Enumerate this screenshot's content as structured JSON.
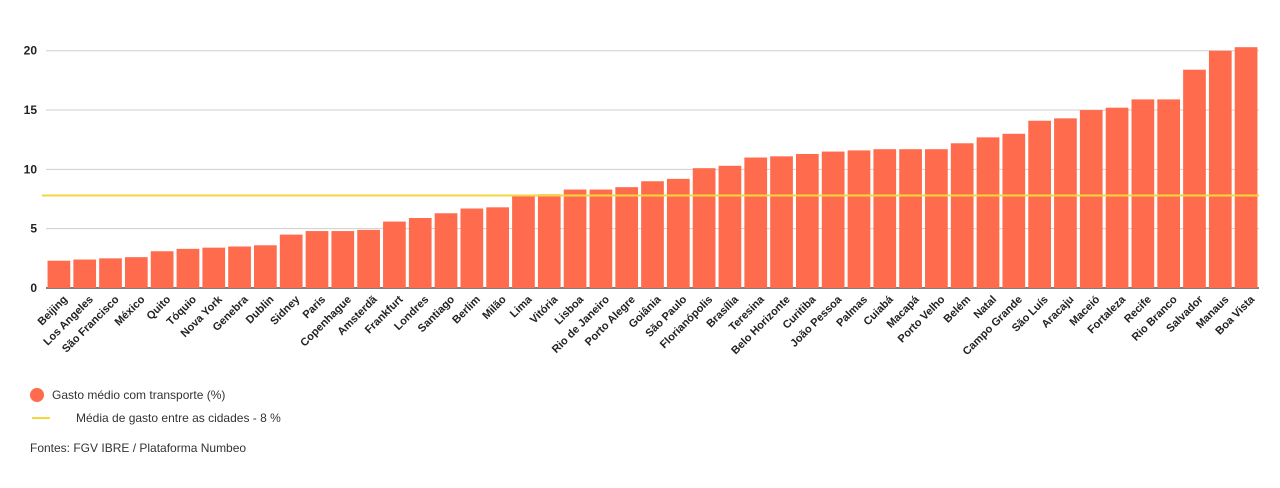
{
  "chart_data": {
    "type": "bar",
    "categories": [
      "Beijing",
      "Los Angeles",
      "São Francisco",
      "México",
      "Quito",
      "Tóquio",
      "Nova York",
      "Genebra",
      "Dublin",
      "Sidney",
      "Paris",
      "Copenhague",
      "Amsterdã",
      "Frankfurt",
      "Londres",
      "Santiago",
      "Berlim",
      "Milão",
      "Lima",
      "Vitória",
      "Lisboa",
      "Rio de Janeiro",
      "Porto Alegre",
      "Goiânia",
      "São Paulo",
      "Florianópolis",
      "Brasília",
      "Teresina",
      "Belo Horizonte",
      "Curitiba",
      "João Pessoa",
      "Palmas",
      "Cuiabá",
      "Macapá",
      "Porto Velho",
      "Belém",
      "Natal",
      "Campo Grande",
      "São Luís",
      "Aracaju",
      "Maceió",
      "Fortaleza",
      "Recife",
      "Rio Branco",
      "Salvador",
      "Manaus",
      "Boa Vista"
    ],
    "series": [
      {
        "name": "Gasto médio com transporte (%)",
        "values": [
          2.3,
          2.4,
          2.5,
          2.6,
          3.1,
          3.3,
          3.4,
          3.5,
          3.6,
          4.5,
          4.8,
          4.8,
          4.9,
          5.6,
          5.9,
          6.3,
          6.7,
          6.8,
          7.8,
          7.9,
          8.3,
          8.3,
          8.5,
          9.0,
          9.2,
          10.1,
          10.3,
          11.0,
          11.1,
          11.3,
          11.5,
          11.6,
          11.7,
          11.7,
          11.7,
          12.2,
          12.7,
          13.0,
          14.1,
          14.3,
          15.0,
          15.2,
          15.9,
          15.9,
          18.4,
          20.0,
          20.3
        ]
      }
    ],
    "reference_line": {
      "name": "Média de gasto entre as cidades - 8 %",
      "value": 7.8
    },
    "ylim": [
      0,
      20.4
    ],
    "yticks": [
      0,
      5,
      10,
      15,
      20
    ],
    "grid": true,
    "legend": "bottom-left"
  },
  "colors": {
    "bar": "#ff6b4d",
    "average_line": "#f5d63d",
    "grid": "#cfcfcf"
  },
  "legend": {
    "bar_label": "Gasto médio com transporte (%)",
    "line_label": "Média de gasto entre as cidades - 8 %"
  },
  "source": "Fontes: FGV IBRE / Plataforma Numbeo"
}
